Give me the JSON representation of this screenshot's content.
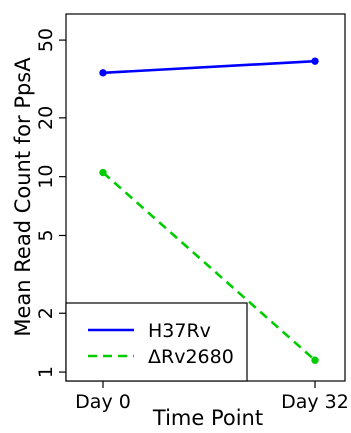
{
  "chart_data": {
    "type": "line",
    "xlabel": "Time Point",
    "ylabel": "Mean Read Count for PpsA",
    "categories": [
      "Day 0",
      "Day 32"
    ],
    "y_scale": "log",
    "ylim": [
      0.9,
      68
    ],
    "yticks": [
      1,
      2,
      5,
      10,
      20,
      50
    ],
    "ytick_labels": [
      "1",
      "2",
      "5",
      "10",
      "20",
      "50"
    ],
    "grid": false,
    "legend_position": "bottom-left",
    "series": [
      {
        "name": "H37Rv",
        "values": [
          34,
          39
        ],
        "color": "#0000ff",
        "line_style": "solid",
        "marker": "circle"
      },
      {
        "name": "ΔRv2680",
        "values": [
          10.5,
          1.15
        ],
        "color": "#00cc00",
        "line_style": "dashed",
        "marker": "circle"
      }
    ]
  }
}
